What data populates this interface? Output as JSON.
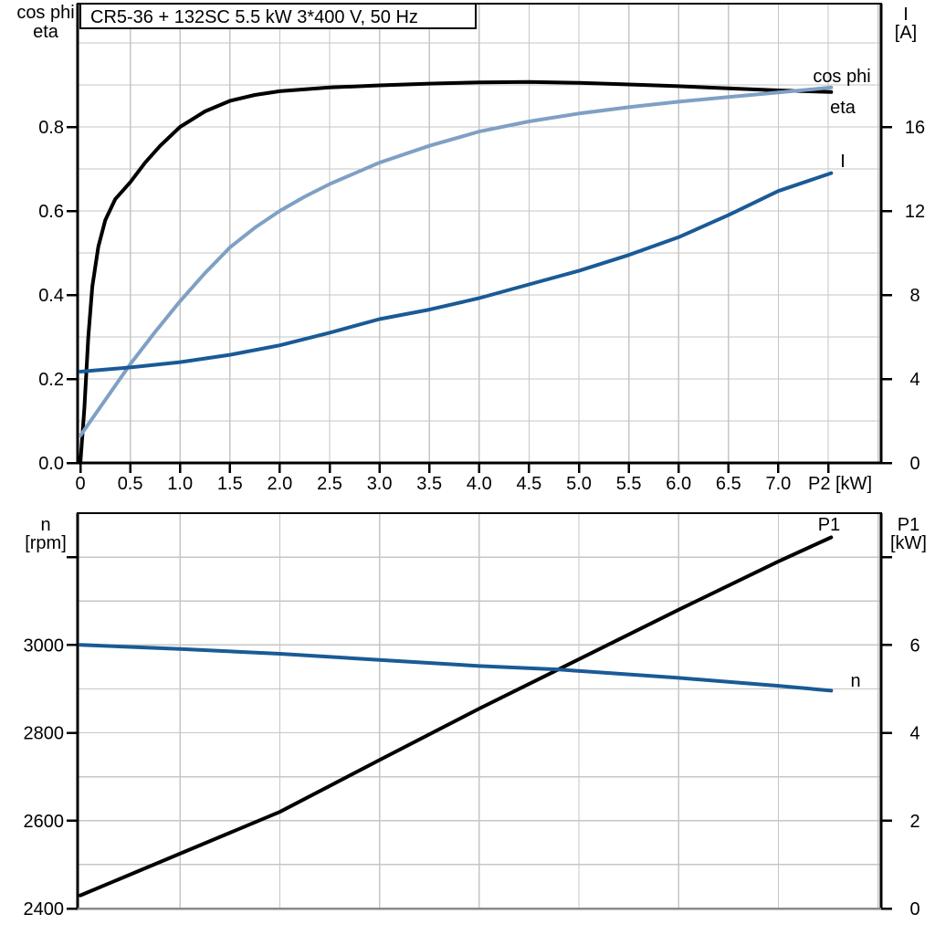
{
  "page": {
    "background": "#ffffff"
  },
  "title_box": {
    "text": "CR5-36 + 132SC   5.5 kW   3*400 V, 50 Hz"
  },
  "colors": {
    "eta": "#000000",
    "cos_phi": "#7FA0C4",
    "current": "#1A5A96",
    "p1": "#000000",
    "n": "#1A5A96",
    "grid": "#c6c6c6",
    "axis": "#000000",
    "baseline_gray": "#8a8a8a",
    "text": "#000000"
  },
  "chart_data": [
    {
      "id": "motor-top",
      "type": "line",
      "title": "CR5-36 + 132SC   5.5 kW   3*400 V, 50 Hz",
      "x_axis": {
        "unit_label": "P2 [kW]",
        "range": [
          0,
          8.03
        ],
        "ticks": [
          0,
          0.5,
          1.0,
          1.5,
          2.0,
          2.5,
          3.0,
          3.5,
          4.0,
          4.5,
          5.0,
          5.5,
          6.0,
          6.5,
          7.0
        ],
        "tick_labels": [
          "0",
          "0.5",
          "1.0",
          "1.5",
          "2.0",
          "2.5",
          "3.0",
          "3.5",
          "4.0",
          "4.5",
          "5.0",
          "5.5",
          "6.0",
          "6.5",
          "7.0"
        ],
        "unlabeled_ticks": [
          7.5
        ],
        "grid_step": 0.5,
        "grid_on": true
      },
      "y_left": {
        "title_lines": [
          "cos phi",
          "eta"
        ],
        "range": [
          0,
          1.0935
        ],
        "ticks": [
          0.0,
          0.2,
          0.4,
          0.6,
          0.8
        ],
        "tick_labels": [
          "0.0",
          "0.2",
          "0.4",
          "0.6",
          "0.8"
        ],
        "grid_step": 0.1
      },
      "y_right": {
        "title_lines": [
          "I",
          "[A]"
        ],
        "range": [
          0,
          21.87
        ],
        "ticks": [
          0,
          4,
          8,
          12,
          16
        ],
        "tick_labels": [
          "0",
          "4",
          "8",
          "12",
          "16"
        ],
        "grid_step": 2
      },
      "series": [
        {
          "name": "eta",
          "axis": "left",
          "color_key": "eta",
          "legend_text": "eta",
          "points": [
            [
              0,
              0
            ],
            [
              0.04,
              0.13
            ],
            [
              0.08,
              0.3
            ],
            [
              0.12,
              0.42
            ],
            [
              0.18,
              0.515
            ],
            [
              0.25,
              0.578
            ],
            [
              0.35,
              0.628
            ],
            [
              0.5,
              0.668
            ],
            [
              0.65,
              0.715
            ],
            [
              0.8,
              0.755
            ],
            [
              1.0,
              0.8
            ],
            [
              1.25,
              0.837
            ],
            [
              1.5,
              0.862
            ],
            [
              1.75,
              0.876
            ],
            [
              2.0,
              0.885
            ],
            [
              2.5,
              0.894
            ],
            [
              3.0,
              0.899
            ],
            [
              3.5,
              0.903
            ],
            [
              4.0,
              0.906
            ],
            [
              4.5,
              0.907
            ],
            [
              5.0,
              0.905
            ],
            [
              5.5,
              0.901
            ],
            [
              6.0,
              0.897
            ],
            [
              6.5,
              0.892
            ],
            [
              7.0,
              0.887
            ],
            [
              7.53,
              0.883
            ]
          ]
        },
        {
          "name": "cos phi",
          "axis": "left",
          "color_key": "cos_phi",
          "legend_text": "cos phi",
          "points": [
            [
              0,
              0.065
            ],
            [
              0.25,
              0.15
            ],
            [
              0.5,
              0.235
            ],
            [
              0.75,
              0.312
            ],
            [
              1.0,
              0.385
            ],
            [
              1.25,
              0.452
            ],
            [
              1.5,
              0.513
            ],
            [
              1.75,
              0.56
            ],
            [
              2.0,
              0.6
            ],
            [
              2.25,
              0.634
            ],
            [
              2.5,
              0.664
            ],
            [
              3.0,
              0.715
            ],
            [
              3.5,
              0.755
            ],
            [
              4.0,
              0.789
            ],
            [
              4.5,
              0.813
            ],
            [
              5.0,
              0.832
            ],
            [
              5.5,
              0.847
            ],
            [
              6.0,
              0.86
            ],
            [
              6.5,
              0.871
            ],
            [
              7.0,
              0.882
            ],
            [
              7.53,
              0.894
            ]
          ]
        },
        {
          "name": "I",
          "axis": "right",
          "color_key": "current",
          "legend_text": "I",
          "points": [
            [
              0,
              4.35
            ],
            [
              0.5,
              4.55
            ],
            [
              1.0,
              4.8
            ],
            [
              1.5,
              5.15
            ],
            [
              2.0,
              5.6
            ],
            [
              2.5,
              6.2
            ],
            [
              3.0,
              6.85
            ],
            [
              3.5,
              7.3
            ],
            [
              4.0,
              7.85
            ],
            [
              4.5,
              8.5
            ],
            [
              5.0,
              9.15
            ],
            [
              5.5,
              9.9
            ],
            [
              6.0,
              10.75
            ],
            [
              6.5,
              11.8
            ],
            [
              7.0,
              12.95
            ],
            [
              7.53,
              13.8
            ]
          ]
        }
      ]
    },
    {
      "id": "motor-bottom",
      "type": "line",
      "title": "",
      "x_axis": {
        "unit_label": "",
        "range": [
          0,
          8.03
        ],
        "ticks": [],
        "tick_labels": [],
        "unlabeled_ticks": [],
        "grid_step": 1.0,
        "grid_on": true
      },
      "y_left": {
        "title_lines": [
          "n",
          "[rpm]"
        ],
        "range": [
          2400,
          3300
        ],
        "ticks": [
          2400,
          2600,
          2800,
          3000
        ],
        "tick_labels": [
          "2400",
          "2600",
          "2800",
          "3000"
        ],
        "unlabeled_ticks": [
          3200
        ],
        "grid_step": 100
      },
      "y_right": {
        "title_lines": [
          "P1",
          "[kW]"
        ],
        "range": [
          0,
          9
        ],
        "ticks": [
          0,
          2,
          4,
          6
        ],
        "tick_labels": [
          "0",
          "2",
          "4",
          "6"
        ],
        "unlabeled_ticks": [
          8
        ],
        "grid_step": 1
      },
      "series": [
        {
          "name": "P1",
          "axis": "right",
          "color_key": "p1",
          "legend_text": "P1",
          "points": [
            [
              0,
              0.3
            ],
            [
              1.0,
              1.25
            ],
            [
              2.0,
              2.2
            ],
            [
              3.0,
              3.38
            ],
            [
              4.0,
              4.55
            ],
            [
              4.8,
              5.45
            ],
            [
              6.0,
              6.8
            ],
            [
              7.0,
              7.9
            ],
            [
              7.53,
              8.45
            ]
          ]
        },
        {
          "name": "n",
          "axis": "left",
          "color_key": "n",
          "legend_text": "n",
          "points": [
            [
              0,
              3000
            ],
            [
              1.0,
              2991
            ],
            [
              2.0,
              2980
            ],
            [
              3.0,
              2966
            ],
            [
              4.0,
              2952
            ],
            [
              4.8,
              2944
            ],
            [
              6.0,
              2925
            ],
            [
              7.0,
              2907
            ],
            [
              7.53,
              2896
            ]
          ]
        }
      ]
    }
  ]
}
